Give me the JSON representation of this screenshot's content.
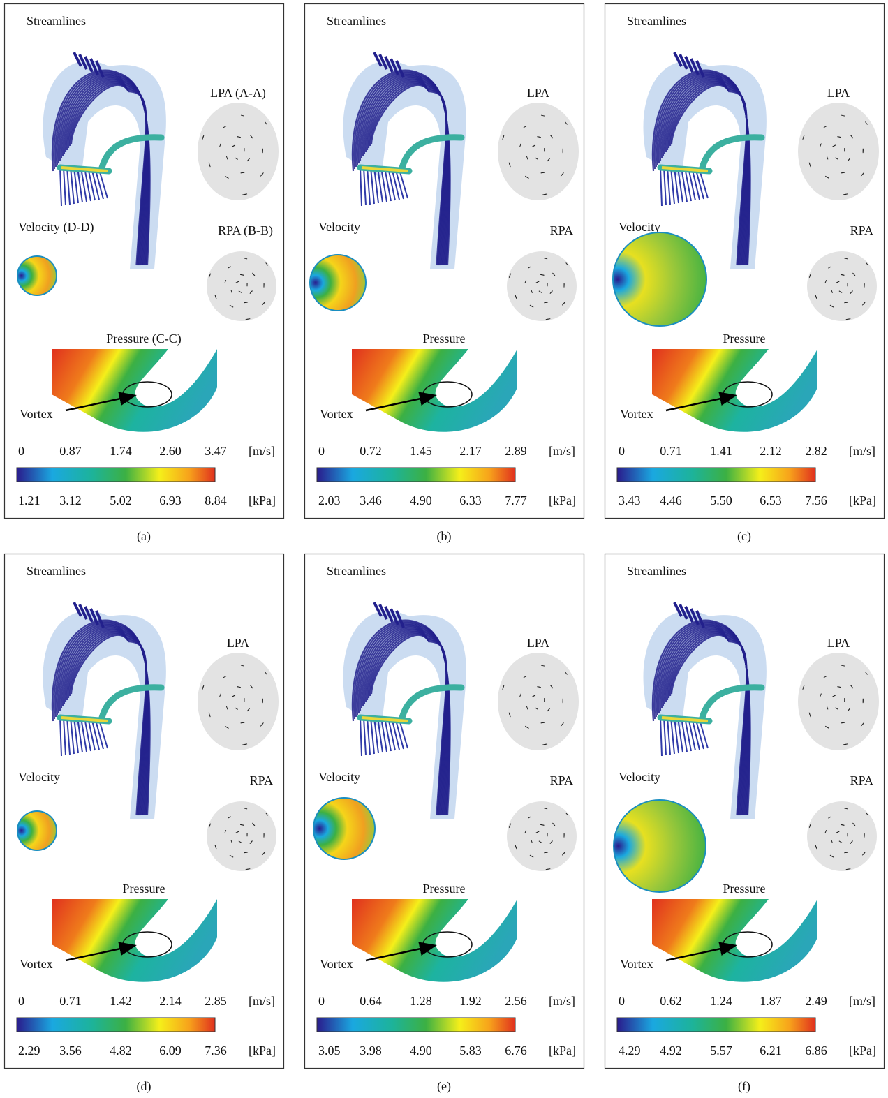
{
  "panels": [
    {
      "streamlines": "Streamlines",
      "lpa": "LPA (A-A)",
      "velocity": "Velocity (D-D)",
      "rpa": "RPA (B-B)",
      "pressure": "Pressure (C-C)",
      "vortex": "Vortex",
      "velocity_ticks": [
        "0",
        "0.87",
        "1.74",
        "2.60",
        "3.47"
      ],
      "velocity_unit": "[m/s]",
      "pressure_ticks": [
        "1.21",
        "3.12",
        "5.02",
        "6.93",
        "8.84"
      ],
      "pressure_unit": "[kPa]",
      "caption": "(a)"
    },
    {
      "streamlines": "Streamlines",
      "lpa": "LPA",
      "velocity": "Velocity",
      "rpa": "RPA",
      "pressure": "Pressure",
      "vortex": "Vortex",
      "velocity_ticks": [
        "0",
        "0.72",
        "1.45",
        "2.17",
        "2.89"
      ],
      "velocity_unit": "[m/s]",
      "pressure_ticks": [
        "2.03",
        "3.46",
        "4.90",
        "6.33",
        "7.77"
      ],
      "pressure_unit": "[kPa]",
      "caption": "(b)"
    },
    {
      "streamlines": "Streamlines",
      "lpa": "LPA",
      "velocity": "Velocity",
      "rpa": "RPA",
      "pressure": "Pressure",
      "vortex": "Vortex",
      "velocity_ticks": [
        "0",
        "0.71",
        "1.41",
        "2.12",
        "2.82"
      ],
      "velocity_unit": "[m/s]",
      "pressure_ticks": [
        "3.43",
        "4.46",
        "5.50",
        "6.53",
        "7.56"
      ],
      "pressure_unit": "[kPa]",
      "caption": "(c)"
    },
    {
      "streamlines": "Streamlines",
      "lpa": "LPA",
      "velocity": "Velocity",
      "rpa": "RPA",
      "pressure": "Pressure",
      "vortex": "Vortex",
      "velocity_ticks": [
        "0",
        "0.71",
        "1.42",
        "2.14",
        "2.85"
      ],
      "velocity_unit": "[m/s]",
      "pressure_ticks": [
        "2.29",
        "3.56",
        "4.82",
        "6.09",
        "7.36"
      ],
      "pressure_unit": "[kPa]",
      "caption": "(d)"
    },
    {
      "streamlines": "Streamlines",
      "lpa": "LPA",
      "velocity": "Velocity",
      "rpa": "RPA",
      "pressure": "Pressure",
      "vortex": "Vortex",
      "velocity_ticks": [
        "0",
        "0.64",
        "1.28",
        "1.92",
        "2.56"
      ],
      "velocity_unit": "[m/s]",
      "pressure_ticks": [
        "3.05",
        "3.98",
        "4.90",
        "5.83",
        "6.76"
      ],
      "pressure_unit": "[kPa]",
      "caption": "(e)"
    },
    {
      "streamlines": "Streamlines",
      "lpa": "LPA",
      "velocity": "Velocity",
      "rpa": "RPA",
      "pressure": "Pressure",
      "vortex": "Vortex",
      "velocity_ticks": [
        "0",
        "0.62",
        "1.24",
        "1.87",
        "2.49"
      ],
      "velocity_unit": "[m/s]",
      "pressure_ticks": [
        "4.29",
        "4.92",
        "5.57",
        "6.21",
        "6.86"
      ],
      "pressure_unit": "[kPa]",
      "caption": "(f)"
    }
  ]
}
